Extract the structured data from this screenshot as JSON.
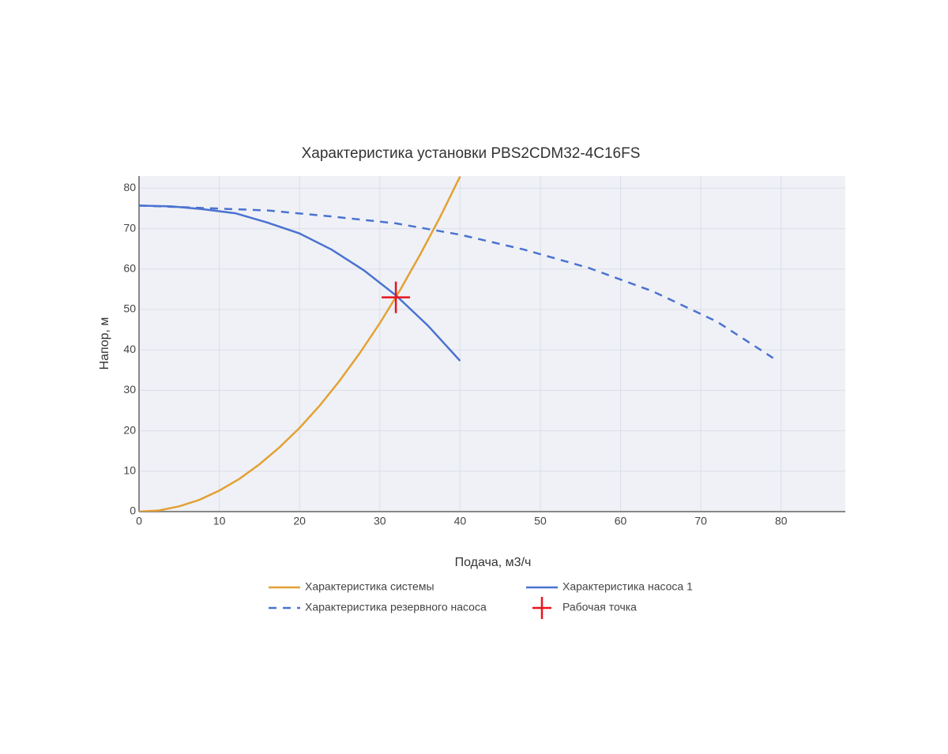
{
  "chart_data": {
    "type": "line",
    "title": "Характеристика установки PBS2CDM32-4C16FS",
    "x_label": "Подача, м3/ч",
    "y_label": "Напор, м",
    "xlim": [
      0,
      88
    ],
    "xticks": [
      0,
      10,
      20,
      30,
      40,
      50,
      60,
      70,
      80
    ],
    "ylim": [
      0,
      83
    ],
    "yticks": [
      0,
      10,
      20,
      30,
      40,
      50,
      60,
      70,
      80
    ],
    "grid": true,
    "series": [
      {
        "name": "Характеристика системы",
        "color": "#e3a134",
        "mode": "lines",
        "dash": false,
        "x": [
          0,
          2.5,
          5,
          7.5,
          10,
          12.5,
          15,
          17.5,
          20,
          22.5,
          25,
          27.5,
          30,
          32.5,
          35,
          37.5,
          40
        ],
        "values": [
          0,
          0.3,
          1.3,
          2.9,
          5.2,
          8.1,
          11.7,
          15.9,
          20.7,
          26.2,
          32.4,
          39.2,
          46.6,
          54.7,
          63.5,
          72.8,
          82.9
        ]
      },
      {
        "name": "Характеристика насоса 1",
        "color": "#4a72d0",
        "mode": "lines",
        "dash": false,
        "x": [
          0,
          4,
          8,
          12,
          16,
          20,
          24,
          28,
          32,
          36,
          40
        ],
        "values": [
          75.7,
          75.5,
          74.8,
          73.8,
          71.5,
          68.8,
          64.8,
          59.7,
          53.5,
          46,
          37.3
        ]
      },
      {
        "name": "Характеристика резервного насоса",
        "color": "#4a72d0",
        "mode": "lines",
        "dash": true,
        "x": [
          0,
          8,
          16,
          24,
          32,
          40,
          48,
          56,
          64,
          72,
          79
        ],
        "values": [
          75.7,
          75.1,
          74.5,
          73,
          71.3,
          68.5,
          64.8,
          60.3,
          54.5,
          47,
          38
        ]
      },
      {
        "name": "Рабочая точка",
        "color": "#e8141b",
        "mode": "markers",
        "dash": false,
        "x": [
          32
        ],
        "values": [
          53
        ]
      }
    ]
  }
}
